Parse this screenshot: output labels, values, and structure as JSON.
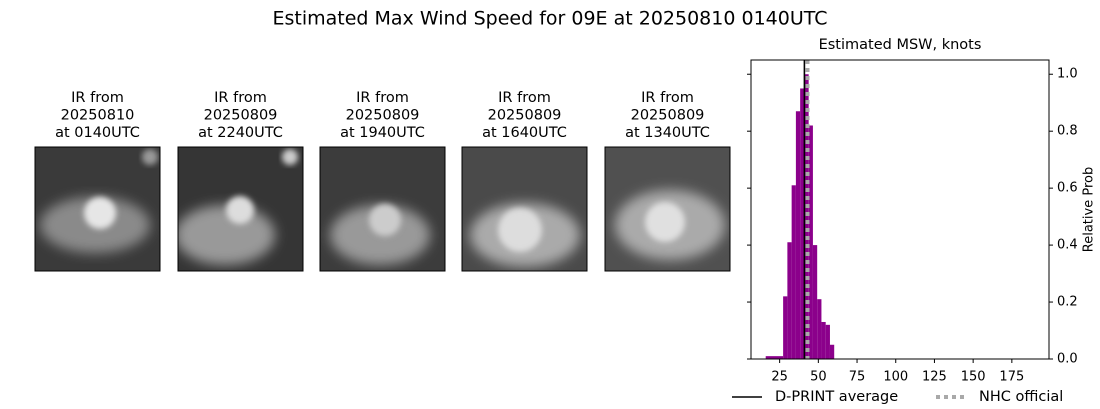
{
  "title": "Estimated Max Wind Speed for 09E at 20250810 0140UTC",
  "panels": [
    {
      "lines": [
        "IR from",
        "20250810",
        "at 0140UTC"
      ]
    },
    {
      "lines": [
        "IR from",
        "20250809",
        "at 2240UTC"
      ]
    },
    {
      "lines": [
        "IR from",
        "20250809",
        "at 1940UTC"
      ]
    },
    {
      "lines": [
        "IR from",
        "20250809",
        "at 1640UTC"
      ]
    },
    {
      "lines": [
        "IR from",
        "20250809",
        "at 1340UTC"
      ]
    }
  ],
  "chart_data": {
    "type": "histogram",
    "title": "Estimated MSW, knots",
    "ylabel": "Relative Prob",
    "bins": [
      16,
      27.25,
      30,
      32.75,
      35.5,
      38.25,
      41,
      43.75,
      46.5,
      49.25,
      52,
      54.75,
      57.5,
      60.25
    ],
    "values": [
      0.01,
      0.22,
      0.41,
      0.61,
      0.87,
      0.95,
      1.0,
      0.82,
      0.4,
      0.21,
      0.13,
      0.12,
      0.05
    ],
    "color": "#8b008b",
    "xlim": [
      6.5,
      199
    ],
    "xticks": [
      25,
      50,
      75,
      100,
      125,
      150,
      175
    ],
    "ylim": [
      0,
      1.05
    ],
    "yticks": [
      {
        "value": 0,
        "label": "0.0"
      },
      {
        "value": 0.2,
        "label": "0.2"
      },
      {
        "value": 0.4,
        "label": "0.4"
      },
      {
        "value": 0.6,
        "label": "0.6"
      },
      {
        "value": 0.8,
        "label": "0.8"
      },
      {
        "value": 1.0,
        "label": "1.0"
      }
    ],
    "reference_lines": [
      {
        "name": "D-PRINT average",
        "value": 41,
        "color": "#000000",
        "style": "solid"
      },
      {
        "name": "NHC official",
        "value": 43,
        "color": "#a9a9a9",
        "style": "dotted"
      }
    ]
  }
}
